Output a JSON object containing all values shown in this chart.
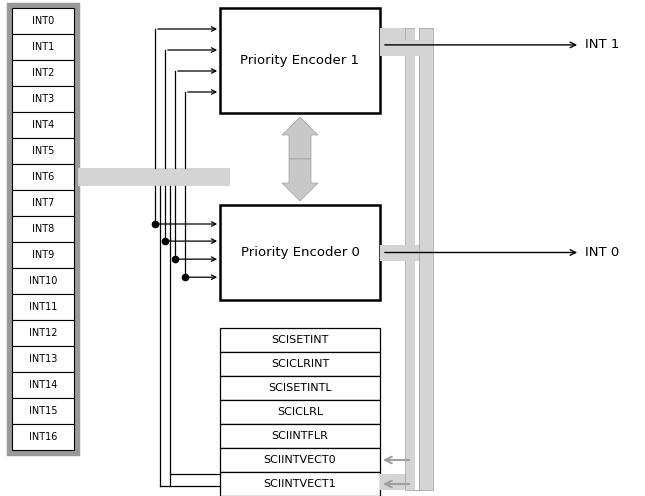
{
  "bg_color": "#ffffff",
  "int_labels": [
    "INT0",
    "INT1",
    "INT2",
    "INT3",
    "INT4",
    "INT5",
    "INT6",
    "INT7",
    "INT8",
    "INT9",
    "INT10",
    "INT11",
    "INT12",
    "INT13",
    "INT14",
    "INT15",
    "INT16"
  ],
  "reg_labels": [
    "SCISETINT",
    "SCICLRINT",
    "SCISETINTL",
    "SCICLRL",
    "SCIINTFLR",
    "SCIINTVECT0",
    "SCIINTVECT1"
  ],
  "pe1_label": "Priority Encoder 1",
  "pe0_label": "Priority Encoder 0",
  "int1_label": "INT 1",
  "int0_label": "INT 0",
  "box_color": "#ffffff",
  "box_edge_color": "#000000",
  "gray_light": "#d4d4d4",
  "gray_mid": "#b0b0b0",
  "gray_dark": "#888888",
  "gray_outer": "#999999"
}
